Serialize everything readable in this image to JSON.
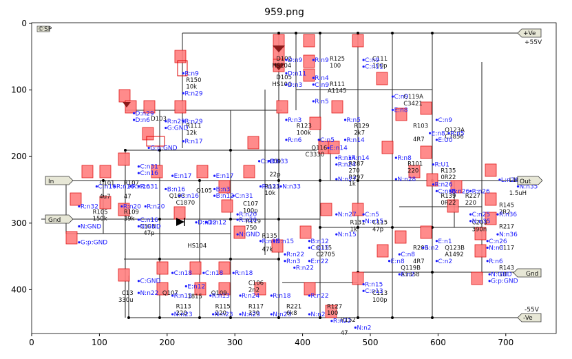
{
  "title": "959.png",
  "axes": {
    "x_ticks": [
      "0",
      "100",
      "200",
      "300",
      "400",
      "500",
      "600",
      "700"
    ],
    "y_ticks": [
      "0",
      "100",
      "200",
      "300",
      "400"
    ]
  },
  "ports": {
    "in": "In",
    "out": "Out",
    "gnd_left": "Gnd",
    "gnd_right": "Gnd",
    "vplus": "+Ve",
    "vminus": "-Ve",
    "vplus_value": "+55V",
    "vminus_value": "-55V",
    "logo": "©SP"
  },
  "component_text": [
    {
      "t": "R150",
      "x": 228,
      "y": 88
    },
    {
      "t": "10k",
      "x": 228,
      "y": 98
    },
    {
      "t": "D103",
      "x": 176,
      "y": 146
    },
    {
      "t": "R111",
      "x": 228,
      "y": 157
    },
    {
      "t": "12k",
      "x": 228,
      "y": 167
    },
    {
      "t": "D102",
      "x": 361,
      "y": 56
    },
    {
      "t": "HS104",
      "x": 355,
      "y": 66
    },
    {
      "t": "D105",
      "x": 361,
      "y": 84
    },
    {
      "t": "HS104",
      "x": 355,
      "y": 94
    },
    {
      "t": "R125",
      "x": 440,
      "y": 56
    },
    {
      "t": "100",
      "x": 440,
      "y": 66
    },
    {
      "t": "R111",
      "x": 440,
      "y": 94
    },
    {
      "t": "A1145",
      "x": 437,
      "y": 104
    },
    {
      "t": "C111",
      "x": 503,
      "y": 56
    },
    {
      "t": "100p",
      "x": 503,
      "y": 66
    },
    {
      "t": "Q119A",
      "x": 549,
      "y": 113
    },
    {
      "t": "C3421",
      "x": 549,
      "y": 123
    },
    {
      "t": "R123",
      "x": 391,
      "y": 157
    },
    {
      "t": "100k",
      "x": 391,
      "y": 167
    },
    {
      "t": "R129",
      "x": 476,
      "y": 157
    },
    {
      "t": "2k7",
      "x": 476,
      "y": 167
    },
    {
      "t": "Q116",
      "x": 413,
      "y": 190
    },
    {
      "t": "C3330",
      "x": 404,
      "y": 200
    },
    {
      "t": "R103",
      "x": 563,
      "y": 157
    },
    {
      "t": "4R7",
      "x": 563,
      "y": 177
    },
    {
      "t": "Q123A",
      "x": 610,
      "y": 163
    },
    {
      "t": "C3856",
      "x": 610,
      "y": 173
    },
    {
      "t": "C09",
      "x": 351,
      "y": 210
    },
    {
      "t": "22p",
      "x": 351,
      "y": 230
    },
    {
      "t": "R287",
      "x": 468,
      "y": 214
    },
    {
      "t": "270",
      "x": 468,
      "y": 224
    },
    {
      "t": "R297",
      "x": 468,
      "y": 234
    },
    {
      "t": "1k",
      "x": 468,
      "y": 244
    },
    {
      "t": "R101",
      "x": 555,
      "y": 214
    },
    {
      "t": "220",
      "x": 555,
      "y": 224
    },
    {
      "t": "R135",
      "x": 604,
      "y": 224
    },
    {
      "t": "0R22",
      "x": 604,
      "y": 234
    },
    {
      "t": "L101",
      "x": 705,
      "y": 238
    },
    {
      "t": "1.5uH",
      "x": 705,
      "y": 258
    },
    {
      "t": "C101",
      "x": 100,
      "y": 243
    },
    {
      "t": "4u7",
      "x": 100,
      "y": 263
    },
    {
      "t": "R107",
      "x": 136,
      "y": 243
    },
    {
      "t": "47",
      "x": 136,
      "y": 263
    },
    {
      "t": "Q103",
      "x": 203,
      "y": 262
    },
    {
      "t": "Q105",
      "x": 243,
      "y": 254
    },
    {
      "t": "C1870",
      "x": 213,
      "y": 272
    },
    {
      "t": "R121",
      "x": 344,
      "y": 248
    },
    {
      "t": "10k",
      "x": 344,
      "y": 258
    },
    {
      "t": "C107",
      "x": 312,
      "y": 274
    },
    {
      "t": "100p",
      "x": 312,
      "y": 284
    },
    {
      "t": "R227",
      "x": 640,
      "y": 262
    },
    {
      "t": "220",
      "x": 640,
      "y": 272
    },
    {
      "t": "R139",
      "x": 604,
      "y": 262
    },
    {
      "t": "0R22",
      "x": 604,
      "y": 272
    },
    {
      "t": "R145",
      "x": 690,
      "y": 276
    },
    {
      "t": "2R2",
      "x": 690,
      "y": 286
    },
    {
      "t": "R105",
      "x": 90,
      "y": 286
    },
    {
      "t": "150k",
      "x": 90,
      "y": 296
    },
    {
      "t": "R109",
      "x": 136,
      "y": 286
    },
    {
      "t": "39k",
      "x": 136,
      "y": 296
    },
    {
      "t": "C103",
      "x": 160,
      "y": 308
    },
    {
      "t": "47p",
      "x": 165,
      "y": 318
    },
    {
      "t": "R119",
      "x": 316,
      "y": 300
    },
    {
      "t": "750",
      "x": 316,
      "y": 310
    },
    {
      "t": "R131",
      "x": 470,
      "y": 302
    },
    {
      "t": "1k",
      "x": 470,
      "y": 312
    },
    {
      "t": "C115",
      "x": 503,
      "y": 302
    },
    {
      "t": "47p",
      "x": 503,
      "y": 312
    },
    {
      "t": "C203",
      "x": 650,
      "y": 302
    },
    {
      "t": "R217",
      "x": 690,
      "y": 308
    },
    {
      "t": "390n",
      "x": 650,
      "y": 312
    },
    {
      "t": "HS104",
      "x": 230,
      "y": 337
    },
    {
      "t": "R135",
      "x": 340,
      "y": 322
    },
    {
      "t": "47k",
      "x": 340,
      "y": 342
    },
    {
      "t": "Q115",
      "x": 420,
      "y": 340
    },
    {
      "t": "C2705",
      "x": 420,
      "y": 350
    },
    {
      "t": "Q123B",
      "x": 610,
      "y": 340
    },
    {
      "t": "A1492",
      "x": 610,
      "y": 350
    },
    {
      "t": "R205",
      "x": 563,
      "y": 340
    },
    {
      "t": "4R7",
      "x": 563,
      "y": 360
    },
    {
      "t": "C117",
      "x": 690,
      "y": 340
    },
    {
      "t": "R143",
      "x": 690,
      "y": 370
    },
    {
      "t": "10",
      "x": 690,
      "y": 380
    },
    {
      "t": "Q119B",
      "x": 545,
      "y": 370
    },
    {
      "t": "A1358",
      "x": 545,
      "y": 380
    },
    {
      "t": "C13",
      "x": 133,
      "y": 408
    },
    {
      "t": "330u",
      "x": 128,
      "y": 418
    },
    {
      "t": "Q107",
      "x": 193,
      "y": 408
    },
    {
      "t": "R113",
      "x": 213,
      "y": 428
    },
    {
      "t": "220",
      "x": 213,
      "y": 438
    },
    {
      "t": "1815",
      "x": 230,
      "y": 413
    },
    {
      "t": "Q109",
      "x": 265,
      "y": 408
    },
    {
      "t": "R115",
      "x": 271,
      "y": 428
    },
    {
      "t": "220",
      "x": 271,
      "y": 438
    },
    {
      "t": "C106",
      "x": 320,
      "y": 393
    },
    {
      "t": "2n2",
      "x": 320,
      "y": 403
    },
    {
      "t": "R117",
      "x": 320,
      "y": 428
    },
    {
      "t": "330",
      "x": 320,
      "y": 438
    },
    {
      "t": "R221",
      "x": 376,
      "y": 428
    },
    {
      "t": "6k8",
      "x": 376,
      "y": 438
    },
    {
      "t": "R127",
      "x": 436,
      "y": 428
    },
    {
      "t": "100",
      "x": 436,
      "y": 438
    },
    {
      "t": "C113",
      "x": 503,
      "y": 408
    },
    {
      "t": "100p",
      "x": 503,
      "y": 418
    },
    {
      "t": "R152",
      "x": 456,
      "y": 448
    },
    {
      "t": "47",
      "x": 456,
      "y": 468
    }
  ],
  "net_labels": [
    {
      "t": "R:n9",
      "x": 226,
      "y": 78
    },
    {
      "t": "R:n29",
      "x": 226,
      "y": 108
    },
    {
      "t": "D:n29",
      "x": 153,
      "y": 138
    },
    {
      "t": "D:n6",
      "x": 153,
      "y": 148
    },
    {
      "t": "R:n29",
      "x": 200,
      "y": 150
    },
    {
      "t": "R:n29",
      "x": 226,
      "y": 150
    },
    {
      "t": "G:GND",
      "x": 200,
      "y": 160
    },
    {
      "t": "R:n17",
      "x": 226,
      "y": 180
    },
    {
      "t": "G:p:GND",
      "x": 175,
      "y": 190
    },
    {
      "t": "D:n9",
      "x": 378,
      "y": 58
    },
    {
      "t": "D:n11",
      "x": 378,
      "y": 78
    },
    {
      "t": "D:n3",
      "x": 378,
      "y": 95
    },
    {
      "t": "R:n9",
      "x": 418,
      "y": 58
    },
    {
      "t": "R:n4",
      "x": 418,
      "y": 85
    },
    {
      "t": "C:n9",
      "x": 418,
      "y": 95
    },
    {
      "t": "R:n5",
      "x": 418,
      "y": 120
    },
    {
      "t": "C:n9",
      "x": 492,
      "y": 58
    },
    {
      "t": "C:n11",
      "x": 492,
      "y": 68
    },
    {
      "t": "C:n9",
      "x": 535,
      "y": 113
    },
    {
      "t": "E:n8",
      "x": 535,
      "y": 133
    },
    {
      "t": "R:n3",
      "x": 378,
      "y": 148
    },
    {
      "t": "R:n5",
      "x": 465,
      "y": 148
    },
    {
      "t": "R:n14",
      "x": 465,
      "y": 178
    },
    {
      "t": "C:n5",
      "x": 426,
      "y": 178
    },
    {
      "t": "R:n6",
      "x": 378,
      "y": 178
    },
    {
      "t": "E:n14",
      "x": 440,
      "y": 190
    },
    {
      "t": "C:n9",
      "x": 600,
      "y": 148
    },
    {
      "t": "E:n8",
      "x": 590,
      "y": 168
    },
    {
      "t": "R:n5",
      "x": 618,
      "y": 168
    },
    {
      "t": "E:U0",
      "x": 600,
      "y": 178
    },
    {
      "t": "C:n33",
      "x": 338,
      "y": 210
    },
    {
      "t": "R:n33",
      "x": 352,
      "y": 210
    },
    {
      "t": "R:n14",
      "x": 452,
      "y": 205
    },
    {
      "t": "R:n24",
      "x": 452,
      "y": 215
    },
    {
      "t": "R:n14",
      "x": 472,
      "y": 205
    },
    {
      "t": "N:n27",
      "x": 452,
      "y": 237
    },
    {
      "t": "R:n8",
      "x": 540,
      "y": 205
    },
    {
      "t": "N:n28",
      "x": 540,
      "y": 237
    },
    {
      "t": "R:U1",
      "x": 595,
      "y": 215
    },
    {
      "t": "R:n26",
      "x": 595,
      "y": 245
    },
    {
      "t": "C:n31",
      "x": 160,
      "y": 218
    },
    {
      "t": "R:n31",
      "x": 160,
      "y": 248
    },
    {
      "t": "C:n16",
      "x": 160,
      "y": 228
    },
    {
      "t": "E:n17",
      "x": 210,
      "y": 232
    },
    {
      "t": "B:n16",
      "x": 200,
      "y": 252
    },
    {
      "t": "C:n16",
      "x": 220,
      "y": 262
    },
    {
      "t": "E:n17",
      "x": 272,
      "y": 232
    },
    {
      "t": "B:n3",
      "x": 272,
      "y": 252
    },
    {
      "t": "B:n12",
      "x": 272,
      "y": 262
    },
    {
      "t": "C:n31",
      "x": 300,
      "y": 262
    },
    {
      "t": "R:n33",
      "x": 340,
      "y": 248
    },
    {
      "t": "N:n33",
      "x": 370,
      "y": 248
    },
    {
      "t": "C:n35",
      "x": 600,
      "y": 255
    },
    {
      "t": "R:n26",
      "x": 620,
      "y": 255
    },
    {
      "t": "R:n26",
      "x": 650,
      "y": 255
    },
    {
      "t": "L:n26",
      "x": 693,
      "y": 238
    },
    {
      "t": "N:n35",
      "x": 720,
      "y": 248
    },
    {
      "t": "C:n16",
      "x": 98,
      "y": 248
    },
    {
      "t": "R:n16",
      "x": 125,
      "y": 248
    },
    {
      "t": "R:n16",
      "x": 148,
      "y": 248
    },
    {
      "t": "R:n32",
      "x": 72,
      "y": 278
    },
    {
      "t": "R:n20",
      "x": 135,
      "y": 278
    },
    {
      "t": "R:n20",
      "x": 170,
      "y": 278
    },
    {
      "t": "C:n16",
      "x": 160,
      "y": 298
    },
    {
      "t": "N:GND",
      "x": 160,
      "y": 308
    },
    {
      "t": "N:GND",
      "x": 72,
      "y": 308
    },
    {
      "t": "R:n20",
      "x": 306,
      "y": 290
    },
    {
      "t": "R:n20",
      "x": 306,
      "y": 298
    },
    {
      "t": "N:GND",
      "x": 306,
      "y": 320
    },
    {
      "t": "N:n27",
      "x": 452,
      "y": 290
    },
    {
      "t": "N:n15",
      "x": 452,
      "y": 320
    },
    {
      "t": "C:n5",
      "x": 492,
      "y": 290
    },
    {
      "t": "N:n15",
      "x": 492,
      "y": 300
    },
    {
      "t": "C:n25",
      "x": 650,
      "y": 290
    },
    {
      "t": "N:n35",
      "x": 650,
      "y": 300
    },
    {
      "t": "R:n36",
      "x": 690,
      "y": 290
    },
    {
      "t": "N:n36",
      "x": 690,
      "y": 320
    },
    {
      "t": "G:p:GND",
      "x": 72,
      "y": 332
    },
    {
      "t": "D:n12",
      "x": 245,
      "y": 302
    },
    {
      "t": "D:n12",
      "x": 260,
      "y": 302
    },
    {
      "t": "R:n15",
      "x": 340,
      "y": 330
    },
    {
      "t": "N:n15",
      "x": 360,
      "y": 330
    },
    {
      "t": "B:n12",
      "x": 412,
      "y": 330
    },
    {
      "t": "C:n15",
      "x": 412,
      "y": 340
    },
    {
      "t": "E:n22",
      "x": 412,
      "y": 360
    },
    {
      "t": "R:n22",
      "x": 376,
      "y": 350
    },
    {
      "t": "R:n3",
      "x": 376,
      "y": 360
    },
    {
      "t": "R:n22",
      "x": 390,
      "y": 370
    },
    {
      "t": "E:n1",
      "x": 600,
      "y": 330
    },
    {
      "t": "C:n2",
      "x": 600,
      "y": 360
    },
    {
      "t": "B:n2",
      "x": 580,
      "y": 340
    },
    {
      "t": "C:n26",
      "x": 675,
      "y": 330
    },
    {
      "t": "N:n3",
      "x": 675,
      "y": 340
    },
    {
      "t": "R:n6",
      "x": 675,
      "y": 360
    },
    {
      "t": "E:n8",
      "x": 530,
      "y": 360
    },
    {
      "t": "E:n2",
      "x": 545,
      "y": 380
    },
    {
      "t": "C:n8",
      "x": 545,
      "y": 350
    },
    {
      "t": "N:GND",
      "x": 678,
      "y": 380
    },
    {
      "t": "G:p:GND",
      "x": 678,
      "y": 390
    },
    {
      "t": "C:GND",
      "x": 160,
      "y": 390
    },
    {
      "t": "N:n22",
      "x": 160,
      "y": 408
    },
    {
      "t": "C:n18",
      "x": 210,
      "y": 378
    },
    {
      "t": "C:n18",
      "x": 256,
      "y": 378
    },
    {
      "t": "R:n18",
      "x": 300,
      "y": 378
    },
    {
      "t": "E:n12",
      "x": 230,
      "y": 398
    },
    {
      "t": "R:n13",
      "x": 210,
      "y": 412
    },
    {
      "t": "R:n13",
      "x": 266,
      "y": 412
    },
    {
      "t": "R:n24",
      "x": 310,
      "y": 412
    },
    {
      "t": "R:n18",
      "x": 356,
      "y": 412
    },
    {
      "t": "N:n23",
      "x": 210,
      "y": 440
    },
    {
      "t": "N:n23",
      "x": 270,
      "y": 440
    },
    {
      "t": "N:n23",
      "x": 310,
      "y": 440
    },
    {
      "t": "N:n23",
      "x": 356,
      "y": 440
    },
    {
      "t": "R:n22",
      "x": 412,
      "y": 412
    },
    {
      "t": "N:n2",
      "x": 412,
      "y": 440
    },
    {
      "t": "R:n15",
      "x": 492,
      "y": 395
    },
    {
      "t": "C:n13",
      "x": 492,
      "y": 405
    },
    {
      "t": "R:n22",
      "x": 445,
      "y": 450
    },
    {
      "t": "N:n2",
      "x": 480,
      "y": 460
    }
  ]
}
